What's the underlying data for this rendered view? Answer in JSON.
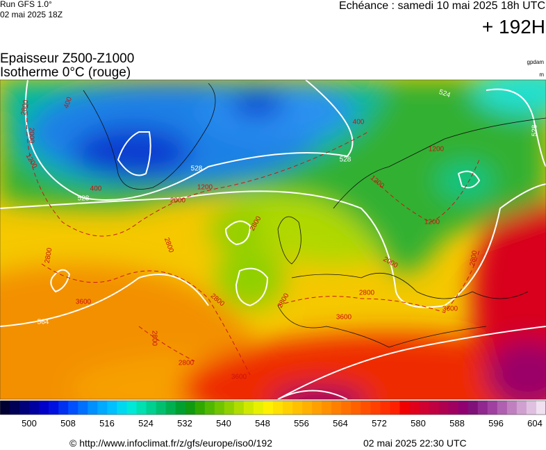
{
  "header": {
    "model": "Run GFS 1.0°",
    "run": "02 mai 2025 18Z",
    "valid": "Echéance : samedi 10 mai 2025 18h UTC",
    "lead": "+ 192H"
  },
  "legend": {
    "title": "Epaisseur Z500-Z1000",
    "subtitle": "Isotherme 0°C (rouge)",
    "unit_thickness": "gpdam",
    "unit_iso": "m"
  },
  "map": {
    "contour_labels": [
      {
        "text": "528",
        "color": "#ffffff"
      },
      {
        "text": "528",
        "color": "#ffffff"
      },
      {
        "text": "528",
        "color": "#ffffff"
      },
      {
        "text": "528",
        "color": "#ffffff"
      },
      {
        "text": "524",
        "color": "#ffffff"
      },
      {
        "text": "564",
        "color": "#ffffff"
      },
      {
        "text": "2800",
        "color": "#cc1010"
      },
      {
        "text": "2000",
        "color": "#cc1010"
      },
      {
        "text": "1200",
        "color": "#cc1010"
      },
      {
        "text": "400",
        "color": "#cc1010"
      },
      {
        "text": "400",
        "color": "#cc1010"
      },
      {
        "text": "1200",
        "color": "#cc1010"
      },
      {
        "text": "2000",
        "color": "#cc1010"
      },
      {
        "text": "2800",
        "color": "#cc1010"
      },
      {
        "text": "2800",
        "color": "#cc1010"
      },
      {
        "text": "3600",
        "color": "#cc1010"
      },
      {
        "text": "2800",
        "color": "#cc1010"
      },
      {
        "text": "2800",
        "color": "#cc1010"
      },
      {
        "text": "2800",
        "color": "#cc1010"
      },
      {
        "text": "3600",
        "color": "#cc1010"
      },
      {
        "text": "2800",
        "color": "#cc1010"
      },
      {
        "text": "2000",
        "color": "#cc1010"
      },
      {
        "text": "1200",
        "color": "#cc1010"
      },
      {
        "text": "1200",
        "color": "#cc1010"
      },
      {
        "text": "1200",
        "color": "#cc1010"
      },
      {
        "text": "400",
        "color": "#cc1010"
      },
      {
        "text": "2800",
        "color": "#cc1010"
      },
      {
        "text": "3600",
        "color": "#cc1010"
      },
      {
        "text": "2800",
        "color": "#cc1010"
      },
      {
        "text": "2800",
        "color": "#cc1010"
      },
      {
        "text": "3600",
        "color": "#cc1010"
      }
    ]
  },
  "colorbar": {
    "ticks": [
      500,
      508,
      516,
      524,
      532,
      540,
      548,
      556,
      564,
      572,
      580,
      588,
      596,
      604
    ],
    "colors": [
      "#000033",
      "#000055",
      "#00007a",
      "#0000a0",
      "#0000c8",
      "#0010e0",
      "#0030f0",
      "#0050ff",
      "#0070ff",
      "#0090ff",
      "#00aaff",
      "#00c0ff",
      "#00d8f0",
      "#00e8d8",
      "#00e0b0",
      "#00d090",
      "#00c070",
      "#00b050",
      "#00a030",
      "#109a10",
      "#30a800",
      "#50b800",
      "#70c400",
      "#90d000",
      "#b0dc00",
      "#d0e800",
      "#e8f000",
      "#fff000",
      "#ffe000",
      "#ffd000",
      "#ffc000",
      "#ffb000",
      "#ffa000",
      "#ff9000",
      "#ff8000",
      "#ff7000",
      "#ff6000",
      "#ff5000",
      "#ff4000",
      "#ff3000",
      "#ff2000",
      "#f00000",
      "#e0001a",
      "#d00030",
      "#c00040",
      "#b00050",
      "#a00060",
      "#900070",
      "#80107a",
      "#902890",
      "#a040a0",
      "#b060b0",
      "#c080c0",
      "#d0a0d0",
      "#e0c0e0",
      "#f0e0f0"
    ]
  },
  "footer": {
    "source": "© http://www.infoclimat.fr/z/gfs/europe/iso0/192",
    "issued": "02 mai 2025 22:30 UTC"
  }
}
